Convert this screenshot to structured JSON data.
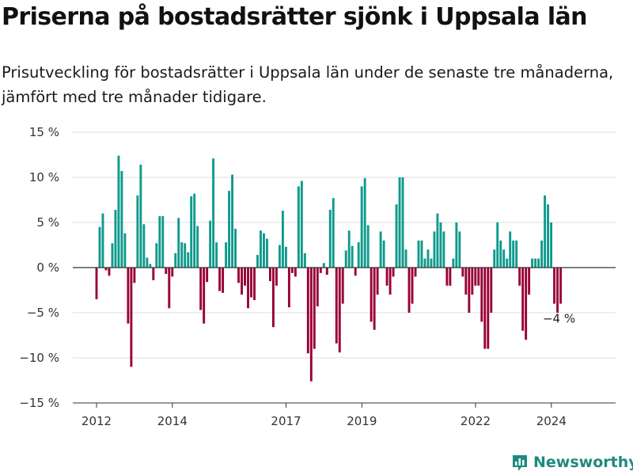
{
  "header": {
    "title": "Priserna på bostadsrätter sjönk i Uppsala län",
    "subtitle": "Prisutveckling för bostadsrätter i Uppsala län under de senaste tre månaderna, jämfört med tre månader tidigare."
  },
  "brand": {
    "name": "Newsworthy",
    "color": "#1f8a7d",
    "icon": "bar-chart-logo-icon"
  },
  "colors": {
    "positive": "#0e9a8c",
    "negative": "#980036",
    "zero_line": "#333333",
    "grid": "#dddddd"
  },
  "chart_data": {
    "type": "bar",
    "title": "",
    "xlabel": "",
    "ylabel": "",
    "ylim": [
      -15,
      15
    ],
    "yticks": [
      15,
      10,
      5,
      0,
      -5,
      -10,
      -15
    ],
    "ytick_labels": [
      "15 %",
      "10 %",
      "5 %",
      "0 %",
      "−5 %",
      "−10 %",
      "−15 %"
    ],
    "xticks": [
      2012,
      2014,
      2017,
      2019,
      2022,
      2024
    ],
    "xtick_labels": [
      "2012",
      "2014",
      "2017",
      "2019",
      "2022",
      "2024"
    ],
    "x_start": 2012.0,
    "x_step": 0.0833,
    "values": [
      -3.5,
      4.5,
      6,
      -0.3,
      -0.9,
      2.7,
      6.4,
      12.4,
      10.7,
      3.8,
      -6.2,
      -11,
      -1.7,
      8,
      11.4,
      4.8,
      1.1,
      0.4,
      -1.4,
      2.7,
      5.7,
      5.7,
      -0.7,
      -4.5,
      -1,
      1.6,
      5.5,
      2.8,
      2.7,
      1.7,
      7.9,
      8.2,
      4.6,
      -4.7,
      -6.2,
      -1.6,
      5.2,
      12.1,
      2.8,
      -2.6,
      -2.8,
      2.8,
      8.5,
      10.3,
      4.3,
      -1.7,
      -3,
      -2,
      -4.5,
      -3.3,
      -3.6,
      1.4,
      4.1,
      3.8,
      3.2,
      -1.5,
      -6.6,
      -2,
      2.5,
      6.3,
      2.3,
      -4.4,
      -0.6,
      -1,
      9,
      9.6,
      1.6,
      -9.5,
      -12.6,
      -9,
      -4.3,
      -0.6,
      0.5,
      -0.8,
      6.4,
      7.7,
      -8.4,
      -9.4,
      -4,
      1.9,
      4.1,
      2.4,
      -0.9,
      2.8,
      9,
      9.9,
      4.7,
      -6,
      -6.9,
      -3,
      4,
      3,
      -2,
      -3,
      -1,
      7,
      10,
      10,
      2,
      -5,
      -4,
      -1,
      3,
      3,
      1,
      2,
      1,
      4,
      6,
      5,
      4,
      -2,
      -2,
      1,
      5,
      4,
      -1,
      -3,
      -5,
      -3,
      -2,
      -2,
      -6,
      -9,
      -9,
      -5,
      2,
      5,
      3,
      2,
      1,
      4,
      3,
      3,
      -2,
      -7,
      -8,
      -3,
      1,
      1,
      1,
      3,
      8,
      7,
      5,
      -4,
      -5,
      -4
    ]
  },
  "annotation": {
    "label": "−4 %"
  }
}
